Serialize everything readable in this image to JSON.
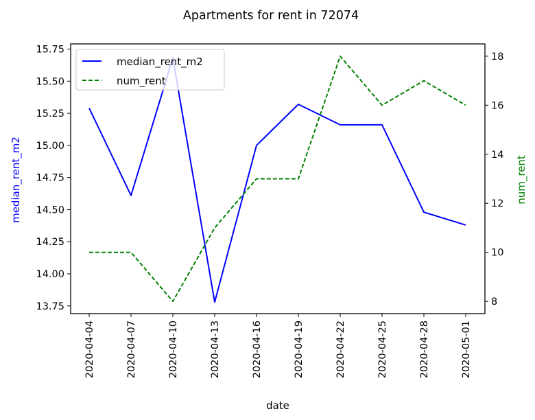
{
  "chart_data": {
    "type": "line",
    "title": "Apartments for rent in 72074",
    "xlabel": "date",
    "ylabel_left": "median_rent_m2",
    "ylabel_right": "num_rent",
    "categories": [
      "2020-04-04",
      "2020-04-07",
      "2020-04-10",
      "2020-04-13",
      "2020-04-16",
      "2020-04-19",
      "2020-04-22",
      "2020-04-25",
      "2020-04-28",
      "2020-05-01"
    ],
    "ylim_left": [
      13.69,
      15.79
    ],
    "ylim_right": [
      7.5,
      18.5
    ],
    "yticks_left": [
      "13.75",
      "14.00",
      "14.25",
      "14.50",
      "14.75",
      "15.00",
      "15.25",
      "15.50",
      "15.75"
    ],
    "yticks_right": [
      "8",
      "10",
      "12",
      "14",
      "16",
      "18"
    ],
    "grid": false,
    "legend_position": "upper-left",
    "series": [
      {
        "name": "median_rent_m2",
        "axis": "left",
        "color": "#0000ff",
        "style": "solid",
        "values": [
          15.29,
          14.61,
          15.68,
          13.78,
          15.0,
          15.32,
          15.16,
          15.16,
          14.48,
          14.38
        ]
      },
      {
        "name": "num_rent",
        "axis": "right",
        "color": "#008000",
        "style": "dashed",
        "values": [
          10,
          10,
          8,
          11,
          13,
          13,
          18,
          16,
          17,
          16
        ]
      }
    ]
  }
}
